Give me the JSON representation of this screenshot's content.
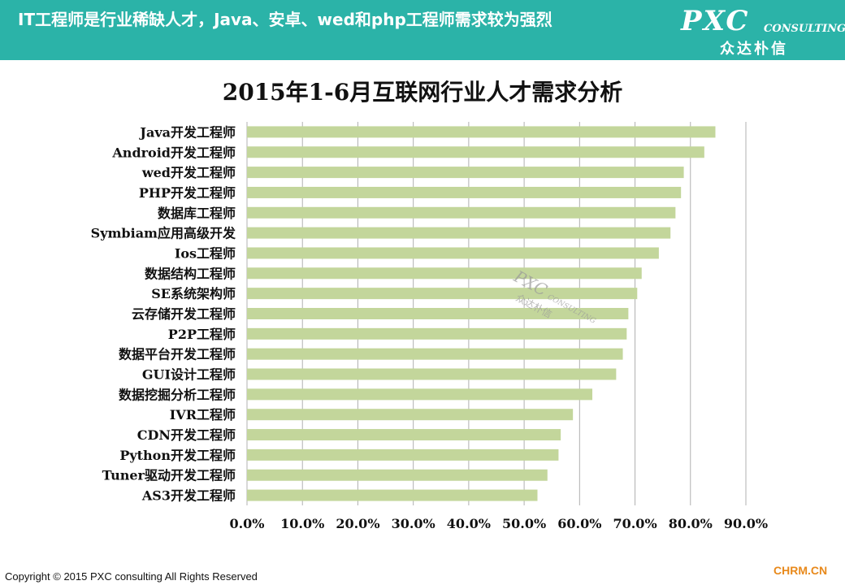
{
  "header": {
    "title": "IT工程师是行业稀缺人才，Java、安卓、wed和php工程师需求较为强烈",
    "logo_text": "PXC",
    "logo_sub": "CONSULTING",
    "logo_cn": "众达朴信"
  },
  "footer": {
    "copyright": "Copyright © 2015  PXC consulting All Rights Reserved",
    "brand": "CHRM.CN"
  },
  "colors": {
    "header_bg": "#2bb3a8",
    "bar": "#c3d69b",
    "grid": "#b0b0b0",
    "brand": "#e8891b"
  },
  "chart_data": {
    "type": "bar",
    "orientation": "horizontal",
    "title": "2015年1-6月互联网行业人才需求分析",
    "categories": [
      "Java开发工程师",
      "Android开发工程师",
      "wed开发工程师",
      "PHP开发工程师",
      "数据库工程师",
      "Symbiam应用高级开发",
      "Ios工程师",
      "数据结构工程师",
      "SE系统架构师",
      "云存储开发工程师",
      "P2P工程师",
      "数据平台开发工程师",
      "GUI设计工程师",
      "数据挖掘分析工程师",
      "IVR工程师",
      "CDN开发工程师",
      "Python开发工程师",
      "Tuner驱动开发工程师",
      "AS3开发工程师"
    ],
    "values": [
      84.5,
      82.5,
      78.8,
      78.3,
      77.3,
      76.4,
      74.3,
      71.2,
      70.4,
      68.8,
      68.5,
      67.8,
      66.6,
      62.3,
      58.8,
      56.6,
      56.2,
      54.2,
      52.4
    ],
    "xlim": [
      0,
      90
    ],
    "xticks": [
      "0.0%",
      "10.0%",
      "20.0%",
      "30.0%",
      "40.0%",
      "50.0%",
      "60.0%",
      "70.0%",
      "80.0%",
      "90.0%"
    ],
    "grid": true,
    "legend": "none"
  }
}
